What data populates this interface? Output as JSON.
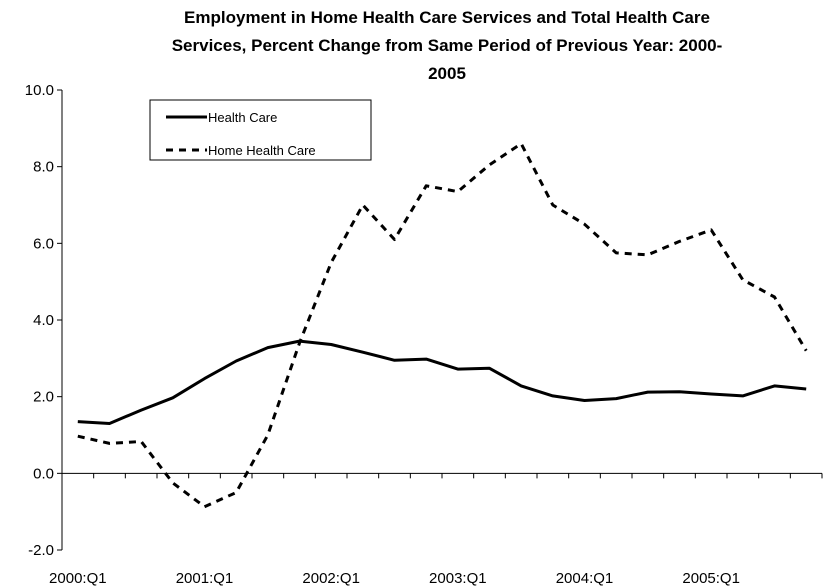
{
  "chart_data": {
    "type": "line",
    "title_lines": [
      "Employment in Home Health Care Services and Total Health Care",
      "Services, Percent Change from Same Period of Previous Year: 2000-",
      "2005"
    ],
    "xlabel": "",
    "ylabel": "",
    "x_tick_labels": [
      "2000:Q1",
      "2001:Q1",
      "2002:Q1",
      "2003:Q1",
      "2004:Q1",
      "2005:Q1"
    ],
    "y_tick_labels": [
      "-2.0",
      "0.0",
      "2.0",
      "4.0",
      "6.0",
      "8.0",
      "10.0"
    ],
    "ylim": [
      -2,
      10
    ],
    "y_ticks": [
      -2,
      0,
      2,
      4,
      6,
      8,
      10
    ],
    "x_quarters": [
      "2000:Q1",
      "2000:Q2",
      "2000:Q3",
      "2000:Q4",
      "2001:Q1",
      "2001:Q2",
      "2001:Q3",
      "2001:Q4",
      "2002:Q1",
      "2002:Q2",
      "2002:Q3",
      "2002:Q4",
      "2003:Q1",
      "2003:Q2",
      "2003:Q3",
      "2003:Q4",
      "2004:Q1",
      "2004:Q2",
      "2004:Q3",
      "2004:Q4",
      "2005:Q1",
      "2005:Q2",
      "2005:Q3",
      "2005:Q4"
    ],
    "grid": false,
    "legend_position": "top-left",
    "series": [
      {
        "name": "Health Care",
        "style": "solid",
        "color": "#000000",
        "values": [
          1.35,
          1.3,
          1.65,
          1.97,
          2.47,
          2.93,
          3.28,
          3.45,
          3.36,
          3.16,
          2.95,
          2.98,
          2.72,
          2.74,
          2.28,
          2.02,
          1.9,
          1.95,
          2.12,
          2.13,
          2.07,
          2.02,
          2.28,
          2.2
        ]
      },
      {
        "name": "Home Health Care",
        "style": "dashed",
        "color": "#000000",
        "values": [
          0.97,
          0.78,
          0.83,
          -0.25,
          -0.87,
          -0.5,
          1.0,
          3.4,
          5.5,
          7.0,
          6.1,
          7.5,
          7.35,
          8.05,
          8.6,
          7.0,
          6.5,
          5.75,
          5.7,
          6.05,
          6.35,
          5.05,
          4.6,
          3.2
        ]
      }
    ]
  }
}
